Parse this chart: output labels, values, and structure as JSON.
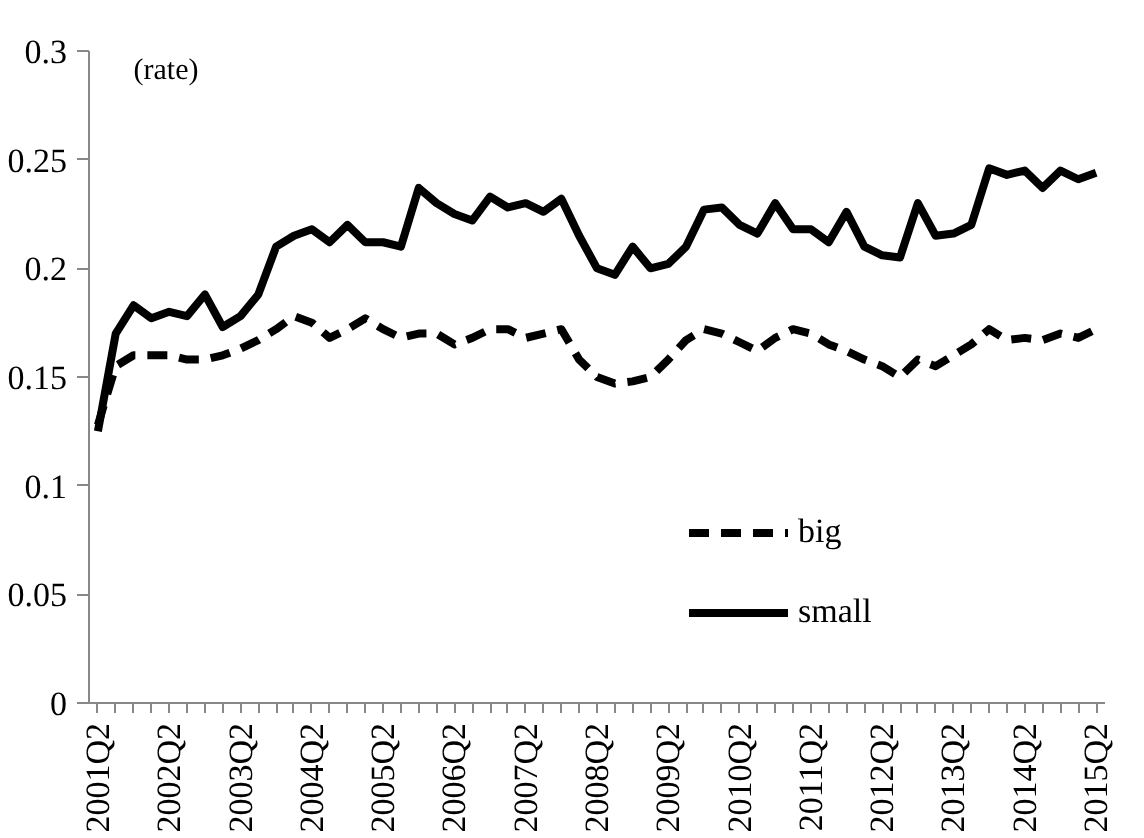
{
  "chart_data": {
    "type": "line",
    "ylabel": "(rate)",
    "categories": [
      "2001Q2",
      null,
      null,
      null,
      "2002Q2",
      null,
      null,
      null,
      "2003Q2",
      null,
      null,
      null,
      "2004Q2",
      null,
      null,
      null,
      "2005Q2",
      null,
      null,
      null,
      "2006Q2",
      null,
      null,
      null,
      "2007Q2",
      null,
      null,
      null,
      "2008Q2",
      null,
      null,
      null,
      "2009Q2",
      null,
      null,
      null,
      "2010Q2",
      null,
      null,
      null,
      "2011Q2",
      null,
      null,
      null,
      "2012Q2",
      null,
      null,
      null,
      "2013Q2",
      null,
      null,
      null,
      "2014Q2",
      null,
      null,
      null,
      "2015Q2"
    ],
    "series": [
      {
        "name": "big",
        "color": "#000000",
        "line_style": "dashed",
        "values": [
          0.128,
          0.155,
          0.16,
          0.16,
          0.16,
          0.158,
          0.158,
          0.16,
          0.163,
          0.167,
          0.172,
          0.178,
          0.175,
          0.168,
          0.172,
          0.177,
          0.172,
          0.168,
          0.17,
          0.17,
          0.165,
          0.168,
          0.172,
          0.172,
          0.168,
          0.17,
          0.172,
          0.158,
          0.15,
          0.147,
          0.148,
          0.15,
          0.158,
          0.167,
          0.172,
          0.17,
          0.166,
          0.162,
          0.168,
          0.172,
          0.17,
          0.165,
          0.162,
          0.158,
          0.155,
          0.15,
          0.158,
          0.155,
          0.16,
          0.165,
          0.172,
          0.167,
          0.168,
          0.167,
          0.17,
          0.168,
          0.172
        ]
      },
      {
        "name": "small",
        "color": "#000000",
        "line_style": "solid",
        "values": [
          0.125,
          0.17,
          0.183,
          0.177,
          0.18,
          0.178,
          0.188,
          0.173,
          0.178,
          0.188,
          0.21,
          0.215,
          0.218,
          0.212,
          0.22,
          0.212,
          0.212,
          0.21,
          0.237,
          0.23,
          0.225,
          0.222,
          0.233,
          0.228,
          0.23,
          0.226,
          0.232,
          0.215,
          0.2,
          0.197,
          0.21,
          0.2,
          0.202,
          0.21,
          0.227,
          0.228,
          0.22,
          0.216,
          0.23,
          0.218,
          0.218,
          0.212,
          0.226,
          0.21,
          0.206,
          0.205,
          0.23,
          0.215,
          0.216,
          0.22,
          0.246,
          0.243,
          0.245,
          0.237,
          0.245,
          0.241,
          0.244
        ]
      }
    ],
    "ylim": [
      0,
      0.3
    ],
    "yticks": [
      0,
      0.05,
      0.1,
      0.15,
      0.2,
      0.25,
      0.3
    ],
    "grid": false,
    "legend": "bottom right",
    "marker": "none"
  }
}
